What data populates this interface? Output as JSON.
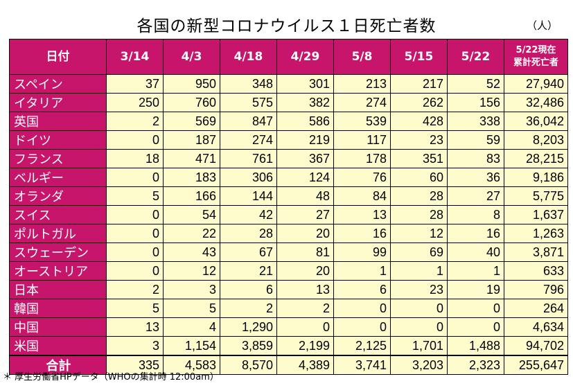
{
  "title": "各国の新型コロナウイルス１日死亡者数",
  "unit": "（人）",
  "columns": {
    "label": "日付",
    "dates": [
      "3/14",
      "4/3",
      "4/18",
      "4/29",
      "5/8",
      "5/15",
      "5/22"
    ],
    "cumulative_line1": "5/22現在",
    "cumulative_line2": "累計死亡者"
  },
  "rows": [
    {
      "name": "スペイン",
      "values": [
        "37",
        "950",
        "348",
        "301",
        "213",
        "217",
        "52",
        "27,940"
      ]
    },
    {
      "name": "イタリア",
      "values": [
        "250",
        "760",
        "575",
        "382",
        "274",
        "262",
        "156",
        "32,486"
      ]
    },
    {
      "name": "英国",
      "values": [
        "2",
        "569",
        "847",
        "586",
        "539",
        "428",
        "338",
        "36,042"
      ]
    },
    {
      "name": "ドイツ",
      "values": [
        "0",
        "187",
        "274",
        "219",
        "117",
        "23",
        "59",
        "8,203"
      ]
    },
    {
      "name": "フランス",
      "values": [
        "18",
        "471",
        "761",
        "367",
        "178",
        "351",
        "83",
        "28,215"
      ]
    },
    {
      "name": "ベルギー",
      "values": [
        "0",
        "183",
        "306",
        "124",
        "76",
        "60",
        "36",
        "9,186"
      ]
    },
    {
      "name": "オランダ",
      "values": [
        "5",
        "166",
        "144",
        "48",
        "84",
        "28",
        "27",
        "5,775"
      ]
    },
    {
      "name": "スイス",
      "values": [
        "0",
        "54",
        "42",
        "27",
        "13",
        "28",
        "8",
        "1,637"
      ]
    },
    {
      "name": "ポルトガル",
      "values": [
        "0",
        "22",
        "28",
        "20",
        "16",
        "12",
        "16",
        "1,263"
      ]
    },
    {
      "name": "スウェーデン",
      "values": [
        "0",
        "43",
        "67",
        "81",
        "99",
        "69",
        "40",
        "3,871"
      ]
    },
    {
      "name": "オーストリア",
      "values": [
        "0",
        "12",
        "21",
        "20",
        "1",
        "1",
        "1",
        "633"
      ]
    },
    {
      "name": "日本",
      "values": [
        "2",
        "3",
        "6",
        "13",
        "6",
        "23",
        "19",
        "796"
      ]
    },
    {
      "name": "韓国",
      "values": [
        "5",
        "5",
        "2",
        "2",
        "0",
        "0",
        "0",
        "264"
      ]
    },
    {
      "name": "中国",
      "values": [
        "13",
        "4",
        "1,290",
        "0",
        "0",
        "0",
        "0",
        "4,634"
      ]
    },
    {
      "name": "米国",
      "values": [
        "3",
        "1,154",
        "3,859",
        "2,199",
        "2,125",
        "1,701",
        "1,488",
        "94,702"
      ]
    }
  ],
  "total": {
    "name": "合計",
    "values": [
      "335",
      "4,583",
      "8,570",
      "4,389",
      "3,741",
      "3,203",
      "2,323",
      "255,647"
    ]
  },
  "footnote": "＊ 厚生労働省HPデータ（WHOの集計時 12:00am）",
  "colors": {
    "header_bg": "#c6156a",
    "cell_bg": "#fefccc",
    "header_text": "#ffffff"
  }
}
